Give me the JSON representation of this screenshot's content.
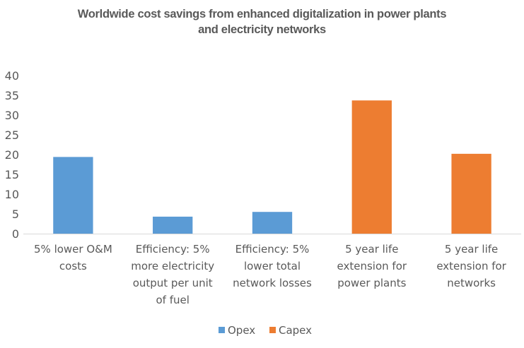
{
  "chart_data": {
    "type": "bar",
    "title": "Worldwide cost savings from enhanced digitalization in power plants and electricity networks",
    "title_lines": [
      "Worldwide cost savings from enhanced digitalization in power plants",
      "and electricity networks"
    ],
    "xlabel": "",
    "ylabel": "",
    "ylim": [
      0,
      40
    ],
    "yticks": [
      0,
      5,
      10,
      15,
      20,
      25,
      30,
      35,
      40
    ],
    "grid": false,
    "legend_position": "bottom",
    "categories": [
      [
        "5% lower O&M",
        "costs"
      ],
      [
        "Efficiency: 5%",
        "more electricity",
        "output per unit",
        "of fuel"
      ],
      [
        "Efficiency: 5%",
        "lower total",
        "network losses"
      ],
      [
        "5 year life",
        "extension for",
        "power plants"
      ],
      [
        "5 year life",
        "extension for",
        "networks"
      ]
    ],
    "series": [
      {
        "name": "Opex",
        "color": "#5B9BD5",
        "values": [
          19.4,
          4.3,
          5.5,
          null,
          null
        ]
      },
      {
        "name": "Capex",
        "color": "#ED7D31",
        "values": [
          null,
          null,
          null,
          33.7,
          20.2
        ]
      }
    ]
  }
}
